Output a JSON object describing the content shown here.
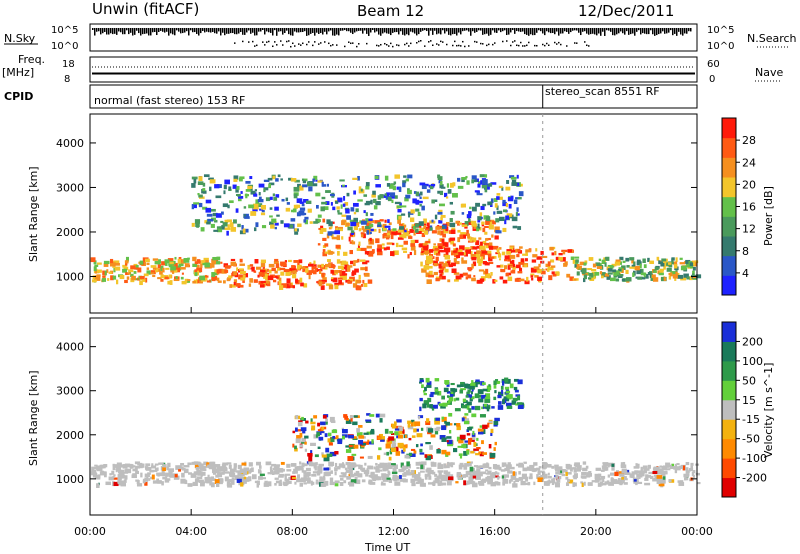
{
  "header": {
    "station": "Unwin (fitACF)",
    "beam": "Beam 12",
    "date": "12/Dec/2011"
  },
  "noise_panel": {
    "left_label": "N.Sky",
    "left_ticks": [
      "10^5",
      "10^0"
    ],
    "right_ticks": [
      "10^5",
      "10^0"
    ],
    "right_label": "N.Search"
  },
  "freq_panel": {
    "left_label_1": "Freq.",
    "left_label_2": "[MHz]",
    "left_ticks": [
      "18",
      "8"
    ],
    "right_ticks": [
      "60",
      "0"
    ],
    "right_label": "Nave"
  },
  "cpid_panel": {
    "label": "CPID",
    "mode_1": "normal (fast stereo) 153 RF",
    "mode_2": "stereo_scan 8551 RF",
    "mode_change_time_h": 17.9
  },
  "colors": {
    "power_scale": [
      "#1e22ff",
      "#2a57c7",
      "#357a6e",
      "#4a9a5c",
      "#63c04a",
      "#f3c52b",
      "#f58f1f",
      "#ff5a14",
      "#ff1a0a"
    ],
    "velocity_scale": [
      "#e00000",
      "#ff4a00",
      "#ff8a00",
      "#f3b20f",
      "#bebebe",
      "#62cf3a",
      "#2e9a4a",
      "#1a7a5a",
      "#1a2fd8"
    ],
    "ground_scatter": "#bebebe"
  },
  "chart_data": [
    {
      "type": "heatmap",
      "name": "power-panel",
      "xlabel": "",
      "ylabel": "Slant Range [km]",
      "xlim_hours": [
        0,
        24
      ],
      "ylim_km": [
        180,
        4650
      ],
      "y_ticks": [
        1000,
        2000,
        3000,
        4000
      ],
      "x_ticks": [
        "00:00",
        "04:00",
        "08:00",
        "12:00",
        "16:00",
        "20:00",
        "00:00"
      ],
      "colorbar": {
        "label": "Power [dB]",
        "ticks": [
          4,
          8,
          12,
          16,
          20,
          24,
          28
        ],
        "range": [
          0,
          30
        ]
      },
      "bands": [
        {
          "t0": 0,
          "t1": 5,
          "r0": 900,
          "r1": 1450,
          "level": "high"
        },
        {
          "t0": 5,
          "t1": 11,
          "r0": 800,
          "r1": 1400,
          "level": "very-high"
        },
        {
          "t0": 9,
          "t1": 16,
          "r0": 1500,
          "r1": 2300,
          "level": "very-high"
        },
        {
          "t0": 13,
          "t1": 19,
          "r0": 900,
          "r1": 1700,
          "level": "very-high"
        },
        {
          "t0": 19,
          "t1": 24,
          "r0": 950,
          "r1": 1450,
          "level": "medium"
        },
        {
          "t0": 4,
          "t1": 17,
          "r0": 2000,
          "r1": 3300,
          "level": "medium-low"
        }
      ]
    },
    {
      "type": "heatmap",
      "name": "velocity-panel",
      "xlabel": "Time UT",
      "ylabel": "Slant Range [km]",
      "xlim_hours": [
        0,
        24
      ],
      "ylim_km": [
        180,
        4650
      ],
      "y_ticks": [
        1000,
        2000,
        3000,
        4000
      ],
      "x_ticks": [
        "00:00",
        "04:00",
        "08:00",
        "12:00",
        "16:00",
        "20:00",
        "00:00"
      ],
      "colorbar": {
        "label": "Velocity [m s^-1]",
        "ticks": [
          -200,
          -100,
          -50,
          -15,
          15,
          50,
          100,
          200
        ]
      },
      "bands": [
        {
          "t0": 0,
          "t1": 24,
          "r0": 900,
          "r1": 1400,
          "level": "ground-scatter"
        },
        {
          "t0": 8,
          "t1": 16,
          "r0": 1500,
          "r1": 2500,
          "level": "mixed"
        },
        {
          "t0": 13,
          "t1": 17,
          "r0": 2600,
          "r1": 3300,
          "level": "positive"
        }
      ]
    }
  ]
}
